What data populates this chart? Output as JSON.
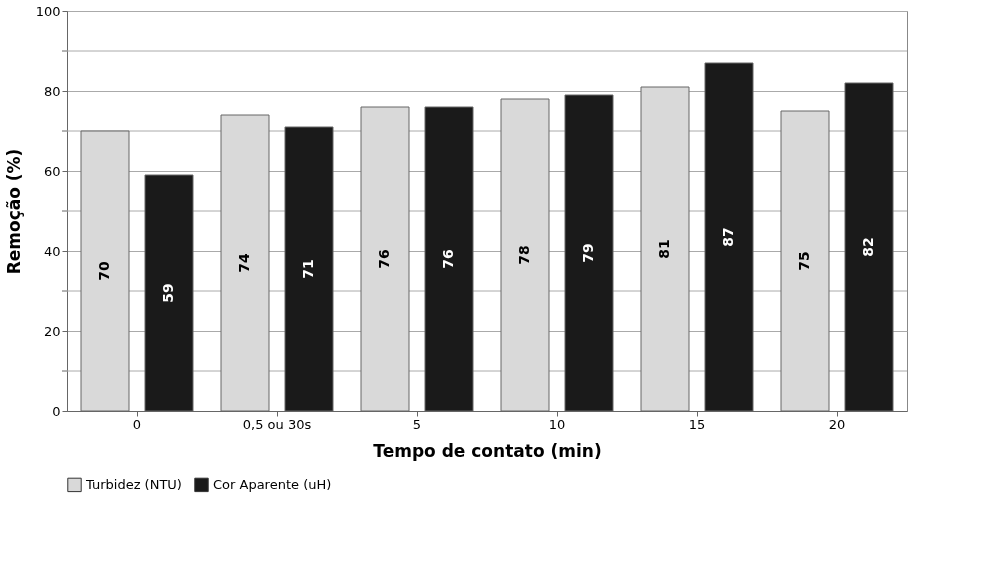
{
  "chart_data": {
    "type": "bar",
    "xlabel": "Tempo de contato (min)",
    "ylabel": "Remoção (%)",
    "categories": [
      "0",
      "0,5 ou 30s",
      "5",
      "10",
      "15",
      "20"
    ],
    "series": [
      {
        "name": "Turbidez (NTU)",
        "color": "#d9d9d9",
        "values": [
          70,
          74,
          76,
          78,
          81,
          75
        ]
      },
      {
        "name": "Cor Aparente (uH)",
        "color": "#1a1a1a",
        "values": [
          59,
          71,
          76,
          79,
          87,
          82
        ]
      }
    ],
    "ylim": [
      0,
      100
    ],
    "yticks": [
      0,
      {
        "value": 10,
        "label": null
      },
      20,
      {
        "value": 30,
        "label": null
      },
      40,
      {
        "value": 50,
        "label": null
      },
      60,
      {
        "value": 70,
        "label": null
      },
      80,
      {
        "value": 90,
        "label": null
      },
      100
    ],
    "grid": "y",
    "legend": "bottom",
    "data_labels": true
  }
}
